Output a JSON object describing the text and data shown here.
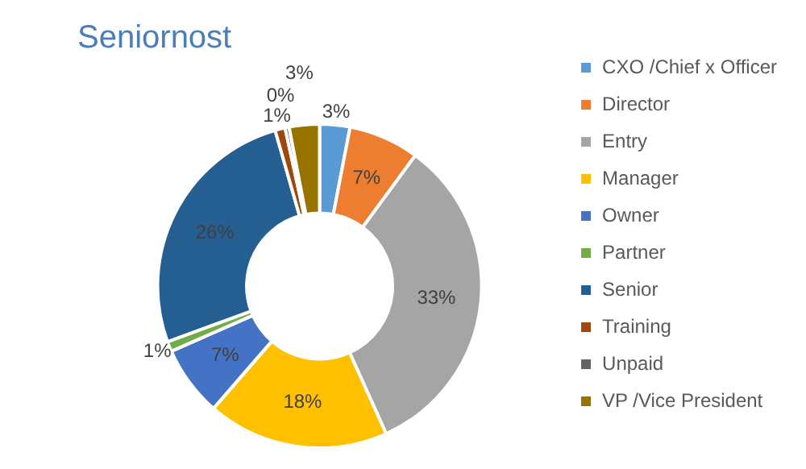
{
  "chart_data": {
    "type": "donut",
    "title": "Seniornost",
    "categories": [
      "CXO /Chief x Officer",
      "Director",
      "Entry",
      "Manager",
      "Owner",
      "Partner",
      "Senior",
      "Training",
      "Unpaid",
      "VP /Vice President"
    ],
    "values": [
      3,
      7,
      33,
      18,
      7,
      1,
      26,
      1,
      0.4,
      3
    ],
    "value_labels": [
      "3%",
      "7%",
      "33%",
      "18%",
      "7%",
      "1%",
      "26%",
      "1%",
      "0%",
      "3%"
    ],
    "colors": [
      "#5b9bd5",
      "#ed7d31",
      "#a5a5a5",
      "#ffc000",
      "#4472c4",
      "#70ad47",
      "#255e91",
      "#9e480e",
      "#636363",
      "#997300"
    ],
    "legend": "right"
  }
}
